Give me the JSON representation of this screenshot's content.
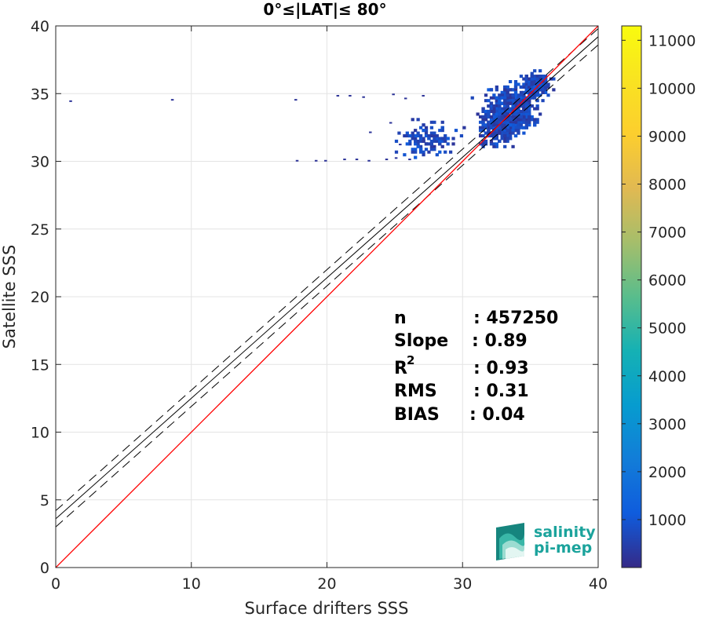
{
  "chart_data": {
    "type": "heatmap",
    "title": "0°≤|LAT|≤ 80°",
    "xlabel": "Surface drifters SSS",
    "ylabel": "Satellite SSS",
    "xlim": [
      0,
      40
    ],
    "ylim": [
      0,
      40
    ],
    "xticks": [
      "0",
      "10",
      "20",
      "30",
      "40"
    ],
    "yticks": [
      "0",
      "5",
      "10",
      "15",
      "20",
      "25",
      "30",
      "35",
      "40"
    ],
    "grid": true,
    "identity_line": {
      "color": "#ff0000",
      "x": [
        0,
        40
      ],
      "y": [
        0,
        40
      ]
    },
    "fit_line": {
      "color": "#000000",
      "x": [
        0,
        40
      ],
      "y": [
        3.6,
        39.2
      ]
    },
    "confidence_lines": [
      {
        "x": [
          0,
          40
        ],
        "y": [
          3.0,
          38.6
        ]
      },
      {
        "x": [
          0,
          40
        ],
        "y": [
          4.2,
          39.8
        ]
      }
    ],
    "density_clusters": [
      {
        "x_center": 33.5,
        "y_center": 33.8,
        "x_spread": 1.8,
        "y_spread": 1.6,
        "count": 500
      },
      {
        "x_center": 32.5,
        "y_center": 32.5,
        "x_spread": 1.2,
        "y_spread": 1.3,
        "count": 300
      },
      {
        "x_center": 35.3,
        "y_center": 35.6,
        "x_spread": 0.9,
        "y_spread": 0.7,
        "count": 300
      },
      {
        "x_center": 27.5,
        "y_center": 31.5,
        "x_spread": 2.0,
        "y_spread": 1.2,
        "count": 120
      }
    ],
    "outlier_points": [
      {
        "x": 1.0,
        "y": 34.4
      },
      {
        "x": 8.5,
        "y": 34.5
      },
      {
        "x": 17.6,
        "y": 34.5
      },
      {
        "x": 17.7,
        "y": 30.0
      },
      {
        "x": 19.1,
        "y": 30.0
      },
      {
        "x": 19.8,
        "y": 30.0
      },
      {
        "x": 21.2,
        "y": 30.1
      },
      {
        "x": 22.1,
        "y": 30.1
      },
      {
        "x": 23.0,
        "y": 30.0
      },
      {
        "x": 24.3,
        "y": 30.1
      },
      {
        "x": 25.0,
        "y": 30.2
      },
      {
        "x": 26.0,
        "y": 30.1
      },
      {
        "x": 20.7,
        "y": 34.8
      },
      {
        "x": 21.6,
        "y": 34.8
      },
      {
        "x": 22.6,
        "y": 34.7
      },
      {
        "x": 24.8,
        "y": 34.9
      },
      {
        "x": 25.7,
        "y": 34.6
      },
      {
        "x": 27.0,
        "y": 34.8
      },
      {
        "x": 23.1,
        "y": 32.1
      },
      {
        "x": 24.6,
        "y": 32.8
      },
      {
        "x": 25.3,
        "y": 31.2
      }
    ],
    "colorbar": {
      "min": 0,
      "max": 11300,
      "ticks": [
        "1000",
        "2000",
        "3000",
        "4000",
        "5000",
        "6000",
        "7000",
        "8000",
        "9000",
        "10000",
        "11000"
      ],
      "colormap": "parula"
    }
  },
  "stats": {
    "labels": [
      "n",
      "Slope",
      "R",
      "RMS",
      "BIAS"
    ],
    "r_superscript": "2",
    "values": [
      ": 457250",
      ": 0.89",
      ": 0.93",
      ": 0.31",
      ": 0.04"
    ]
  },
  "logo": {
    "line1": "salinity",
    "line2": "pi-mep",
    "color": "#1ba39c"
  }
}
